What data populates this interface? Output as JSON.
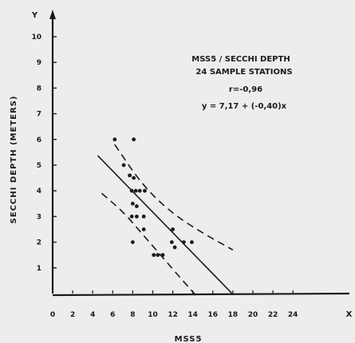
{
  "chart_data": {
    "type": "scatter",
    "xlabel": "MSS5",
    "ylabel": "SECCHI  DEPTH  (METERS)",
    "x_axis_letter": "X",
    "y_axis_letter": "Y",
    "xlim": [
      0,
      25
    ],
    "ylim": [
      0,
      10.5
    ],
    "x_ticks": [
      "0",
      "2",
      "4",
      "6",
      "8",
      "10",
      "12",
      "14",
      "16",
      "18",
      "20",
      "22",
      "24"
    ],
    "y_ticks": [
      "1",
      "2",
      "3",
      "4",
      "5",
      "6",
      "7",
      "8",
      "9",
      "10"
    ],
    "grid": false,
    "annotations": [
      "MSS5 / SECCHI  DEPTH",
      "24  SAMPLE   STATIONS",
      "r=-0,96",
      "y = 7,17 + (-0,40)x"
    ],
    "points": [
      {
        "x": 6.2,
        "y": 6.0
      },
      {
        "x": 8.1,
        "y": 6.0
      },
      {
        "x": 7.1,
        "y": 5.0
      },
      {
        "x": 7.7,
        "y": 4.6
      },
      {
        "x": 8.1,
        "y": 4.5
      },
      {
        "x": 7.9,
        "y": 4.0
      },
      {
        "x": 8.3,
        "y": 4.0
      },
      {
        "x": 8.7,
        "y": 4.0
      },
      {
        "x": 9.2,
        "y": 4.0
      },
      {
        "x": 8.0,
        "y": 3.5
      },
      {
        "x": 8.4,
        "y": 3.4
      },
      {
        "x": 7.9,
        "y": 3.0
      },
      {
        "x": 8.4,
        "y": 3.0
      },
      {
        "x": 9.1,
        "y": 3.0
      },
      {
        "x": 9.1,
        "y": 2.5
      },
      {
        "x": 12.0,
        "y": 2.5
      },
      {
        "x": 8.0,
        "y": 2.0
      },
      {
        "x": 11.9,
        "y": 2.0
      },
      {
        "x": 13.1,
        "y": 2.0
      },
      {
        "x": 13.9,
        "y": 2.0
      },
      {
        "x": 10.1,
        "y": 1.5
      },
      {
        "x": 11.0,
        "y": 1.5
      },
      {
        "x": 12.2,
        "y": 1.8
      },
      {
        "x": 10.5,
        "y": 1.5
      }
    ],
    "regression": {
      "intercept": 7.17,
      "slope": -0.4,
      "x_range": [
        4.5,
        17.9
      ]
    },
    "confidence_upper": [
      [
        6.2,
        5.8
      ],
      [
        9.0,
        4.2
      ],
      [
        12.0,
        3.1
      ],
      [
        15.0,
        2.35
      ],
      [
        18.0,
        1.7
      ]
    ],
    "confidence_lower": [
      [
        4.9,
        3.9
      ],
      [
        7.0,
        3.2
      ],
      [
        9.0,
        2.3
      ],
      [
        11.0,
        1.4
      ],
      [
        13.0,
        0.5
      ],
      [
        14.6,
        -0.2
      ]
    ],
    "colors": {
      "ink": "#1a1a1a",
      "paper": "#ededeb"
    }
  }
}
